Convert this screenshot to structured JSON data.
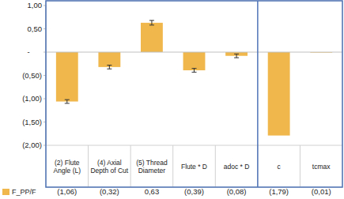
{
  "chart_data": {
    "type": "bar",
    "categories": [
      "(2) Flute Angle (L)",
      "(4) Axial Depth of Cut",
      "(5) Thread Diameter",
      "Flute * D",
      "adoc * D",
      "c",
      "tcmax"
    ],
    "series": [
      {
        "name": "F_PP/F",
        "color": "#f0b84c",
        "values": [
          -1.06,
          -0.32,
          0.63,
          -0.39,
          -0.08,
          -1.79,
          -0.01
        ],
        "value_labels": [
          "(1,06)",
          "(0,32)",
          "0,63",
          "(0,39)",
          "(0,08)",
          "(1,79)",
          "(0,01)"
        ],
        "errors": [
          0.04,
          0.04,
          0.05,
          0.04,
          0.04,
          null,
          null
        ]
      }
    ],
    "ylim": [
      -2,
      1
    ],
    "yticks": [
      {
        "value": 1,
        "label": "1,00"
      },
      {
        "value": 0.5,
        "label": "0,50"
      },
      {
        "value": 0,
        "label": "-"
      },
      {
        "value": -0.5,
        "label": "(0,50)"
      },
      {
        "value": -1,
        "label": "(1,00)"
      },
      {
        "value": -1.5,
        "label": "(1,50)"
      },
      {
        "value": -2,
        "label": "(2,00)"
      }
    ],
    "grid": false,
    "data_labels": true,
    "legend": "bottom"
  }
}
